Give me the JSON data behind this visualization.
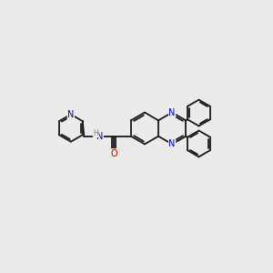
{
  "background_color": "#ebebeb",
  "bond_color": "#1a1a1a",
  "N_color": "#0000cc",
  "O_color": "#cc0000",
  "H_color": "#808080",
  "figsize": [
    3.0,
    3.0
  ],
  "dpi": 100,
  "xlim": [
    0,
    10
  ],
  "ylim": [
    0,
    10
  ]
}
